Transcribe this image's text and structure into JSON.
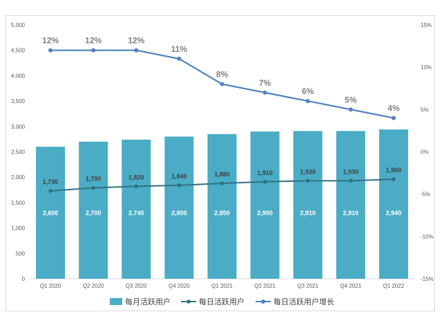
{
  "chart_data": {
    "type": "bar",
    "categories": [
      "Q1 2020",
      "Q2 2020",
      "Q3 2020",
      "Q4 2020",
      "Q1 2021",
      "Q2 2021",
      "Q3 2021",
      "Q4 2021",
      "Q1 2022"
    ],
    "series": [
      {
        "name": "每月活跃用户",
        "type": "bar",
        "axis": "left",
        "values": [
          2600,
          2700,
          2740,
          2800,
          2850,
          2900,
          2910,
          2910,
          2940
        ],
        "labels": [
          "2,600",
          "2,700",
          "2,740",
          "2,800",
          "2,850",
          "2,900",
          "2,910",
          "2,910",
          "2,940"
        ],
        "color": "#4bacc6"
      },
      {
        "name": "每日活跃用户",
        "type": "line",
        "axis": "left",
        "values": [
          1730,
          1790,
          1820,
          1840,
          1880,
          1910,
          1930,
          1930,
          1960
        ],
        "labels": [
          "1,730",
          "1,790",
          "1,820",
          "1,840",
          "1,880",
          "1,910",
          "1,930",
          "1,930",
          "1,960"
        ],
        "color": "#31707f"
      },
      {
        "name": "每日活跃用户增长",
        "type": "line",
        "axis": "right",
        "values": [
          12,
          12,
          12,
          11,
          8,
          7,
          6,
          5,
          4
        ],
        "labels": [
          "12%",
          "12%",
          "12%",
          "11%",
          "8%",
          "7%",
          "6%",
          "5%",
          "4%"
        ],
        "color": "#4f81bd"
      }
    ],
    "y_left": {
      "min": 0,
      "max": 5000,
      "step": 500,
      "ticks": [
        "0",
        "500",
        "1,000",
        "1,500",
        "2,000",
        "2,500",
        "3,000",
        "3,500",
        "4,000",
        "4,500",
        "5,000"
      ]
    },
    "y_right": {
      "min": -15,
      "max": 15,
      "step": 5,
      "ticks": [
        "-15%",
        "-10%",
        "-5%",
        "0%",
        "5%",
        "10%",
        "15%"
      ]
    },
    "legend_position": "bottom",
    "grid": false
  }
}
